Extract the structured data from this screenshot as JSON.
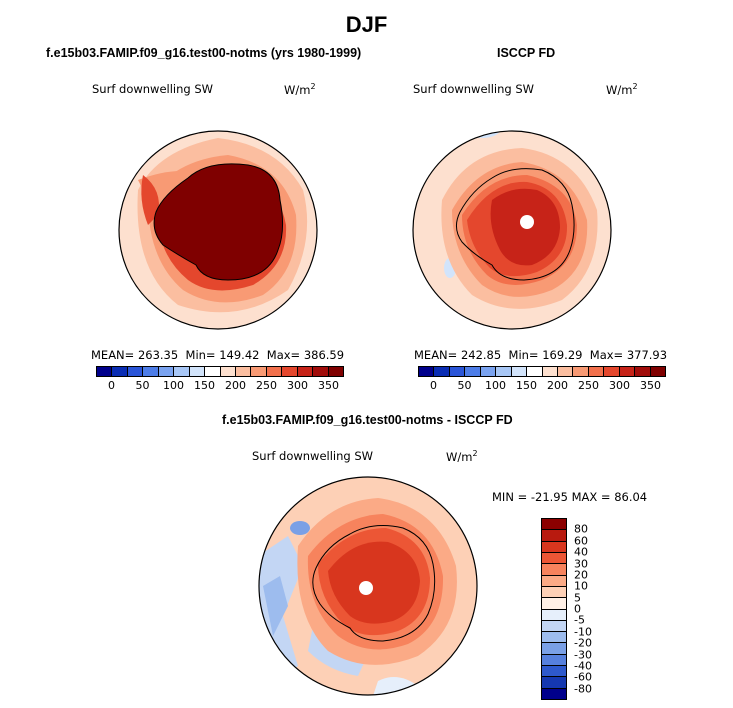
{
  "main_title": "DJF",
  "panels": {
    "left": {
      "title": "f.e15b03.FAMIP.f09_g16.test00-notms (yrs 1980-1999)",
      "var_label": "Surf downwelling SW",
      "unit": "W/m",
      "unit_exp": "2",
      "mean_label": "MEAN= 263.35",
      "min_label": "Min= 149.42",
      "max_label": "Max= 386.59"
    },
    "right": {
      "title": "ISCCP FD",
      "var_label": "Surf downwelling SW",
      "unit": "W/m",
      "unit_exp": "2",
      "mean_label": "MEAN= 242.85",
      "min_label": "Min= 169.29",
      "max_label": "Max= 377.93"
    },
    "diff": {
      "title": "f.e15b03.FAMIP.f09_g16.test00-notms - ISCCP FD",
      "var_label": "Surf downwelling SW",
      "unit": "W/m",
      "unit_exp": "2",
      "minmax_label": "MIN = -21.95 MAX =  86.04"
    }
  },
  "colorbar_abs": {
    "ticks": [
      "0",
      "50",
      "100",
      "150",
      "200",
      "250",
      "300",
      "350"
    ],
    "colors": [
      "#00008b",
      "#0a2db4",
      "#2a55d8",
      "#4d7de8",
      "#7aa3f0",
      "#a8c7f6",
      "#d2e4fb",
      "#ffffff",
      "#fde0cf",
      "#fbbea0",
      "#f89a74",
      "#f2704c",
      "#e4472d",
      "#c72318",
      "#a10c0a",
      "#7f0000"
    ]
  },
  "colorbar_diff": {
    "ticks": [
      "80",
      "60",
      "40",
      "30",
      "20",
      "10",
      "5",
      "0",
      "-5",
      "-10",
      "-20",
      "-30",
      "-40",
      "-60",
      "-80"
    ],
    "colors": [
      "#8b0000",
      "#b81a0f",
      "#d8361e",
      "#ec5635",
      "#f7835d",
      "#fbaa86",
      "#fdd0b6",
      "#fff0e6",
      "#e6effb",
      "#c3d6f4",
      "#9dbcee",
      "#7aa0e6",
      "#5680dd",
      "#2e59cc",
      "#1538b0",
      "#00008b"
    ]
  },
  "icons": {
    "left_map": "polar-map-icon",
    "right_map": "polar-map-icon",
    "diff_map": "polar-map-icon"
  }
}
